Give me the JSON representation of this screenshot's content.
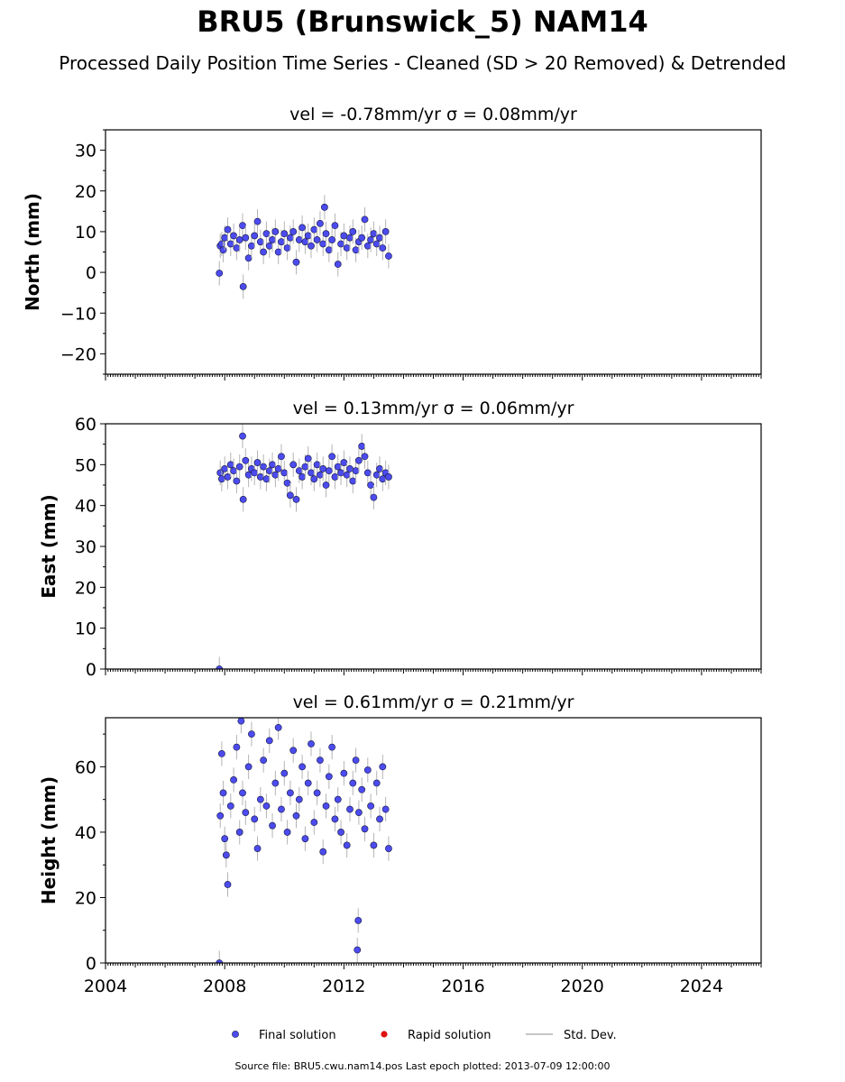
{
  "header": {
    "title": "BRU5 (Brunswick_5) NAM14",
    "subtitle": "Processed Daily Position Time Series - Cleaned (SD > 20 Removed) & Detrended"
  },
  "footer": {
    "source": "Source file: BRU5.cwu.nam14.pos  Last epoch plotted: 2013-07-09 12:00:00"
  },
  "legend": {
    "final": "Final solution",
    "rapid": "Rapid solution",
    "std": "Std. Dev."
  },
  "colors": {
    "final": "#4b4bf0",
    "rapid": "#e01010",
    "errorbar": "#b4b4b4"
  },
  "chart_data": [
    {
      "type": "scatter",
      "title": "vel = -0.78mm/yr   σ = 0.08mm/yr",
      "ylabel": "North (mm)",
      "xlim": [
        2004,
        2026
      ],
      "ylim": [
        -25,
        35
      ],
      "yticks": [
        -20,
        -10,
        0,
        10,
        20,
        30
      ],
      "xticks": [
        2004,
        2008,
        2012,
        2016,
        2020,
        2024
      ],
      "show_xticklabels": false,
      "series": [
        {
          "name": "Final solution",
          "x": [
            2007.82,
            2007.85,
            2007.9,
            2007.95,
            2008.0,
            2008.1,
            2008.2,
            2008.3,
            2008.4,
            2008.5,
            2008.6,
            2008.62,
            2008.7,
            2008.8,
            2008.9,
            2009.0,
            2009.1,
            2009.2,
            2009.3,
            2009.4,
            2009.5,
            2009.6,
            2009.7,
            2009.8,
            2009.9,
            2010.0,
            2010.1,
            2010.2,
            2010.3,
            2010.4,
            2010.5,
            2010.6,
            2010.7,
            2010.8,
            2010.9,
            2011.0,
            2011.1,
            2011.2,
            2011.3,
            2011.35,
            2011.4,
            2011.5,
            2011.6,
            2011.7,
            2011.8,
            2011.9,
            2012.0,
            2012.1,
            2012.2,
            2012.3,
            2012.4,
            2012.5,
            2012.6,
            2012.7,
            2012.8,
            2012.9,
            2013.0,
            2013.1,
            2013.2,
            2013.3,
            2013.4,
            2013.5
          ],
          "y": [
            -0.2,
            6.5,
            7.0,
            5.5,
            8.5,
            10.5,
            7.0,
            9.0,
            6.0,
            8.0,
            11.5,
            -3.5,
            8.5,
            3.5,
            6.5,
            9.0,
            12.5,
            7.5,
            5.0,
            9.5,
            6.5,
            8.0,
            10.0,
            5.0,
            7.5,
            9.5,
            6.0,
            8.5,
            10.0,
            2.5,
            8.0,
            11.0,
            7.5,
            9.0,
            6.5,
            10.5,
            8.0,
            12.0,
            7.0,
            16.0,
            9.5,
            5.5,
            8.0,
            11.5,
            2.0,
            7.0,
            9.0,
            6.0,
            8.5,
            10.0,
            5.5,
            7.5,
            8.5,
            13.0,
            6.5,
            8.0,
            9.5,
            7.0,
            8.5,
            6.0,
            10.0,
            4.0
          ]
        }
      ]
    },
    {
      "type": "scatter",
      "title": "vel = 0.13mm/yr   σ = 0.06mm/yr",
      "ylabel": "East (mm)",
      "xlim": [
        2004,
        2026
      ],
      "ylim": [
        0,
        60
      ],
      "yticks": [
        0,
        10,
        20,
        30,
        40,
        50,
        60
      ],
      "xticks": [
        2004,
        2008,
        2012,
        2016,
        2020,
        2024
      ],
      "show_xticklabels": false,
      "series": [
        {
          "name": "Final solution",
          "x": [
            2007.82,
            2007.85,
            2007.9,
            2008.0,
            2008.1,
            2008.2,
            2008.3,
            2008.4,
            2008.5,
            2008.6,
            2008.62,
            2008.7,
            2008.8,
            2008.9,
            2009.0,
            2009.1,
            2009.2,
            2009.3,
            2009.4,
            2009.5,
            2009.6,
            2009.7,
            2009.8,
            2009.9,
            2010.0,
            2010.1,
            2010.2,
            2010.3,
            2010.4,
            2010.5,
            2010.6,
            2010.7,
            2010.8,
            2010.9,
            2011.0,
            2011.1,
            2011.2,
            2011.3,
            2011.4,
            2011.5,
            2011.6,
            2011.7,
            2011.8,
            2011.9,
            2012.0,
            2012.1,
            2012.2,
            2012.3,
            2012.4,
            2012.5,
            2012.6,
            2012.7,
            2012.8,
            2012.9,
            2013.0,
            2013.1,
            2013.2,
            2013.3,
            2013.4,
            2013.5
          ],
          "y": [
            0.0,
            48.0,
            46.5,
            49.0,
            47.0,
            50.0,
            48.5,
            46.0,
            49.5,
            57.0,
            41.5,
            51.0,
            47.5,
            49.0,
            48.0,
            50.5,
            47.0,
            49.5,
            46.5,
            48.5,
            50.0,
            47.5,
            49.0,
            52.0,
            48.0,
            45.5,
            42.5,
            50.0,
            41.5,
            48.5,
            47.0,
            49.5,
            51.5,
            48.0,
            46.5,
            50.0,
            47.5,
            49.0,
            45.0,
            48.5,
            52.0,
            47.0,
            49.5,
            48.0,
            50.5,
            47.5,
            49.0,
            46.0,
            48.5,
            51.0,
            54.5,
            52.0,
            48.0,
            45.0,
            42.0,
            47.5,
            49.0,
            46.5,
            48.0,
            47.0
          ]
        }
      ]
    },
    {
      "type": "scatter",
      "title": "vel = 0.61mm/yr   σ = 0.21mm/yr",
      "ylabel": "Height (mm)",
      "xlim": [
        2004,
        2026
      ],
      "ylim": [
        0,
        75
      ],
      "yticks": [
        0,
        20,
        40,
        60
      ],
      "xticks": [
        2004,
        2008,
        2012,
        2016,
        2020,
        2024
      ],
      "show_xticklabels": true,
      "series": [
        {
          "name": "Final solution",
          "x": [
            2007.82,
            2007.85,
            2007.9,
            2007.95,
            2008.0,
            2008.05,
            2008.1,
            2008.2,
            2008.3,
            2008.4,
            2008.5,
            2008.55,
            2008.6,
            2008.7,
            2008.8,
            2008.9,
            2009.0,
            2009.1,
            2009.2,
            2009.3,
            2009.4,
            2009.5,
            2009.6,
            2009.7,
            2009.8,
            2009.9,
            2010.0,
            2010.1,
            2010.2,
            2010.3,
            2010.4,
            2010.5,
            2010.6,
            2010.7,
            2010.8,
            2010.9,
            2011.0,
            2011.1,
            2011.2,
            2011.3,
            2011.4,
            2011.5,
            2011.6,
            2011.7,
            2011.8,
            2011.9,
            2012.0,
            2012.1,
            2012.2,
            2012.3,
            2012.4,
            2012.45,
            2012.48,
            2012.5,
            2012.6,
            2012.7,
            2012.8,
            2012.9,
            2013.0,
            2013.1,
            2013.2,
            2013.3,
            2013.4,
            2013.5
          ],
          "y": [
            0.0,
            45.0,
            64.0,
            52.0,
            38.0,
            33.0,
            24.0,
            48.0,
            56.0,
            66.0,
            40.0,
            74.0,
            52.0,
            46.0,
            60.0,
            70.0,
            44.0,
            35.0,
            50.0,
            62.0,
            48.0,
            68.0,
            42.0,
            55.0,
            72.0,
            47.0,
            58.0,
            40.0,
            52.0,
            65.0,
            45.0,
            50.0,
            60.0,
            38.0,
            55.0,
            67.0,
            43.0,
            52.0,
            62.0,
            34.0,
            48.0,
            57.0,
            66.0,
            44.0,
            50.0,
            40.0,
            58.0,
            36.0,
            47.0,
            55.0,
            62.0,
            4.0,
            13.0,
            46.0,
            53.0,
            41.0,
            59.0,
            48.0,
            36.0,
            55.0,
            44.0,
            60.0,
            47.0,
            35.0
          ]
        }
      ]
    }
  ]
}
